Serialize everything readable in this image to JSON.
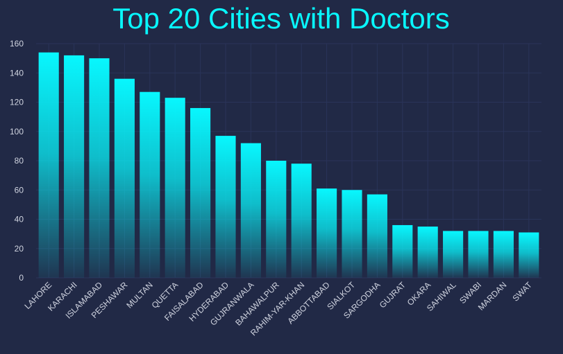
{
  "chart_data": {
    "type": "bar",
    "title": "Top 20 Cities with Doctors",
    "xlabel": "",
    "ylabel": "",
    "categories": [
      "LAHORE",
      "KARACHI",
      "ISLAMABAD",
      "PESHAWAR",
      "MULTAN",
      "QUETTA",
      "FAISALABAD",
      "HYDERABAD",
      "GUJRANWALA",
      "BAHAWALPUR",
      "RAHIM-YAR-KHAN",
      "ABBOTTABAD",
      "SIALKOT",
      "SARGODHA",
      "GUJRAT",
      "OKARA",
      "SAHIWAL",
      "SWABI",
      "MARDAN",
      "SWAT"
    ],
    "values": [
      154,
      152,
      150,
      136,
      127,
      123,
      116,
      97,
      92,
      80,
      78,
      61,
      60,
      57,
      36,
      35,
      32,
      32,
      32,
      31
    ],
    "ylim": [
      0,
      160
    ],
    "yticks": [
      0,
      20,
      40,
      60,
      80,
      100,
      120,
      140,
      160
    ],
    "grid": true,
    "legend": "none"
  },
  "colors": {
    "background": "#212946",
    "grid": "#2A3459",
    "bar_top": "#08F7FE",
    "bar_bottom": "#212946",
    "title": "#08F7FE",
    "tick_text": "#D0D4E0"
  }
}
